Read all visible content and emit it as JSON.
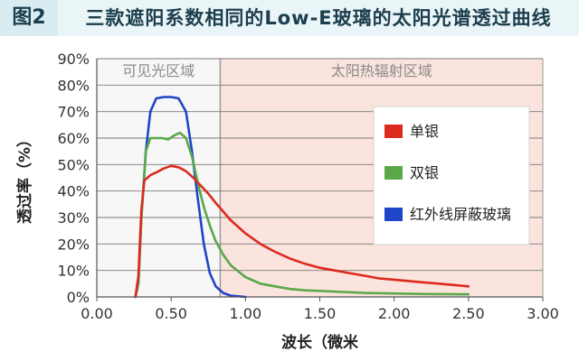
{
  "figure_label": "图2",
  "chart_data": {
    "type": "line",
    "title": "三款遮阳系数相同的Low-E玻璃的太阳光谱透过曲线",
    "xlabel": "波长（微米",
    "ylabel": "透过率（%）",
    "xlim": [
      0,
      3.0
    ],
    "ylim": [
      0,
      90
    ],
    "x_ticks": [
      "0.00",
      "0.50",
      "1.00",
      "1.50",
      "2.00",
      "2.50",
      "3.00"
    ],
    "y_ticks": [
      "0%",
      "10%",
      "20%",
      "30%",
      "40%",
      "50%",
      "60%",
      "70%",
      "80%",
      "90%"
    ],
    "grid": true,
    "regions": [
      {
        "label": "可见光区域",
        "x_range": [
          0,
          0.83
        ],
        "color": "#f7f7f7"
      },
      {
        "label": "太阳热辐射区域",
        "x_range": [
          0.83,
          3.0
        ],
        "color": "#fbe4dd"
      }
    ],
    "legend_position": "top-right",
    "series": [
      {
        "name": "单银",
        "color": "#dd2a1e",
        "points": [
          [
            0.26,
            0
          ],
          [
            0.28,
            8
          ],
          [
            0.3,
            33
          ],
          [
            0.32,
            44
          ],
          [
            0.34,
            45
          ],
          [
            0.36,
            46
          ],
          [
            0.4,
            47
          ],
          [
            0.45,
            48.5
          ],
          [
            0.5,
            49.5
          ],
          [
            0.55,
            49
          ],
          [
            0.6,
            47.5
          ],
          [
            0.65,
            45
          ],
          [
            0.7,
            42
          ],
          [
            0.75,
            39
          ],
          [
            0.8,
            35.5
          ],
          [
            0.9,
            29
          ],
          [
            1.0,
            24
          ],
          [
            1.1,
            20
          ],
          [
            1.2,
            17
          ],
          [
            1.3,
            14.5
          ],
          [
            1.4,
            12.5
          ],
          [
            1.5,
            11
          ],
          [
            1.6,
            10
          ],
          [
            1.7,
            9
          ],
          [
            1.8,
            8
          ],
          [
            1.9,
            7
          ],
          [
            2.0,
            6.5
          ],
          [
            2.1,
            6
          ],
          [
            2.2,
            5.5
          ],
          [
            2.3,
            5
          ],
          [
            2.4,
            4.5
          ],
          [
            2.5,
            4
          ]
        ]
      },
      {
        "name": "双银",
        "color": "#5aa84a",
        "points": [
          [
            0.26,
            0
          ],
          [
            0.28,
            5
          ],
          [
            0.3,
            30
          ],
          [
            0.33,
            55
          ],
          [
            0.36,
            60
          ],
          [
            0.4,
            60
          ],
          [
            0.44,
            60
          ],
          [
            0.48,
            59.5
          ],
          [
            0.52,
            61
          ],
          [
            0.56,
            62
          ],
          [
            0.6,
            60
          ],
          [
            0.64,
            53
          ],
          [
            0.68,
            43
          ],
          [
            0.72,
            34
          ],
          [
            0.76,
            27
          ],
          [
            0.8,
            21
          ],
          [
            0.85,
            16
          ],
          [
            0.9,
            12
          ],
          [
            1.0,
            7.5
          ],
          [
            1.1,
            5
          ],
          [
            1.2,
            4
          ],
          [
            1.3,
            3
          ],
          [
            1.4,
            2.5
          ],
          [
            1.6,
            2
          ],
          [
            1.8,
            1.5
          ],
          [
            2.0,
            1.3
          ],
          [
            2.2,
            1.1
          ],
          [
            2.5,
            1
          ]
        ]
      },
      {
        "name": "红外线屏蔽玻璃",
        "color": "#1f45c8",
        "points": [
          [
            0.26,
            0
          ],
          [
            0.28,
            5
          ],
          [
            0.3,
            30
          ],
          [
            0.33,
            55
          ],
          [
            0.36,
            70
          ],
          [
            0.4,
            75
          ],
          [
            0.45,
            75.5
          ],
          [
            0.5,
            75.5
          ],
          [
            0.55,
            75
          ],
          [
            0.6,
            70
          ],
          [
            0.64,
            55
          ],
          [
            0.68,
            37
          ],
          [
            0.72,
            20
          ],
          [
            0.76,
            9
          ],
          [
            0.8,
            4
          ],
          [
            0.85,
            1.5
          ],
          [
            0.9,
            0.5
          ],
          [
            1.0,
            0
          ]
        ]
      }
    ]
  }
}
